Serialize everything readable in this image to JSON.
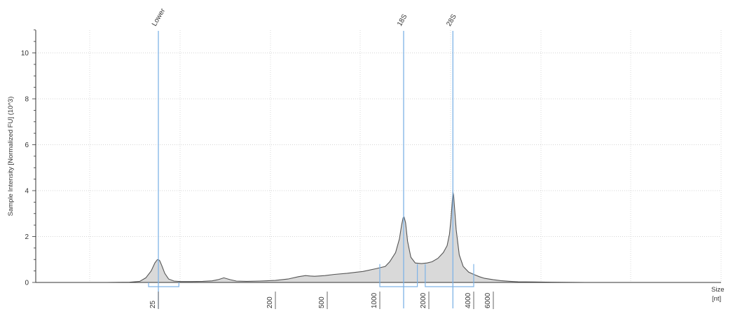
{
  "chart_data": {
    "type": "area",
    "title": "",
    "ylabel": "Sample Intensity [Normalized FU] (10^3)",
    "xlabel": "Size [nt]",
    "xlabel_lines": [
      "Size",
      "[nt]"
    ],
    "ylim": [
      0,
      11
    ],
    "yticks": [
      0,
      2,
      4,
      6,
      8,
      10
    ],
    "ytick_labels": [
      "0",
      "2",
      "4",
      "6",
      "8",
      "10"
    ],
    "x_scale": "log",
    "xticks": [
      25,
      200,
      500,
      1000,
      2000,
      4000,
      6000
    ],
    "xtick_labels": [
      "25",
      "200",
      "500",
      "1000",
      "2000",
      "4000",
      "6000"
    ],
    "grid": true,
    "fill_color": "#d9d9d9",
    "line_color": "#555555",
    "marker_color": "#7fb3e6",
    "peaks": [
      {
        "label": "Lower",
        "size": 25,
        "height": 1.0
      },
      {
        "label": "18S",
        "size": 1400,
        "height": 2.85
      },
      {
        "label": "28S",
        "size": 2900,
        "height": 3.95
      }
    ],
    "series": [
      {
        "x": [
          2,
          5,
          10,
          15,
          18,
          20,
          22,
          23.5,
          24.5,
          25,
          25.6,
          26.5,
          28,
          30,
          33,
          37,
          45,
          55,
          65,
          72,
          80,
          90,
          100,
          120,
          150,
          200,
          250,
          300,
          340,
          370,
          400,
          430,
          480,
          550,
          650,
          800,
          950,
          1080,
          1150,
          1250,
          1320,
          1360,
          1390,
          1410,
          1440,
          1480,
          1550,
          1650,
          1800,
          1950,
          2100,
          2300,
          2500,
          2650,
          2750,
          2820,
          2870,
          2900,
          2930,
          2980,
          3050,
          3200,
          3400,
          3700,
          4000,
          4500,
          5000,
          6000,
          7000,
          8500,
          10000,
          14000,
          20000,
          40000,
          100000,
          200000
        ],
        "y": [
          0,
          0,
          0,
          0.01,
          0.05,
          0.2,
          0.5,
          0.85,
          0.99,
          1.0,
          0.95,
          0.75,
          0.4,
          0.15,
          0.06,
          0.04,
          0.04,
          0.05,
          0.07,
          0.12,
          0.2,
          0.12,
          0.06,
          0.05,
          0.06,
          0.09,
          0.15,
          0.25,
          0.3,
          0.28,
          0.27,
          0.28,
          0.3,
          0.35,
          0.4,
          0.48,
          0.6,
          0.7,
          0.9,
          1.3,
          1.9,
          2.5,
          2.82,
          2.85,
          2.6,
          1.8,
          1.1,
          0.85,
          0.82,
          0.85,
          0.9,
          1.05,
          1.3,
          1.6,
          2.1,
          2.8,
          3.5,
          3.95,
          3.8,
          3.2,
          2.3,
          1.2,
          0.7,
          0.45,
          0.35,
          0.25,
          0.18,
          0.12,
          0.08,
          0.05,
          0.03,
          0.02,
          0.01,
          0,
          0,
          0
        ]
      }
    ],
    "integration_regions": [
      {
        "from": 21,
        "to": 36
      },
      {
        "from": 1000,
        "to": 1700
      },
      {
        "from": 1900,
        "to": 4000
      }
    ]
  }
}
